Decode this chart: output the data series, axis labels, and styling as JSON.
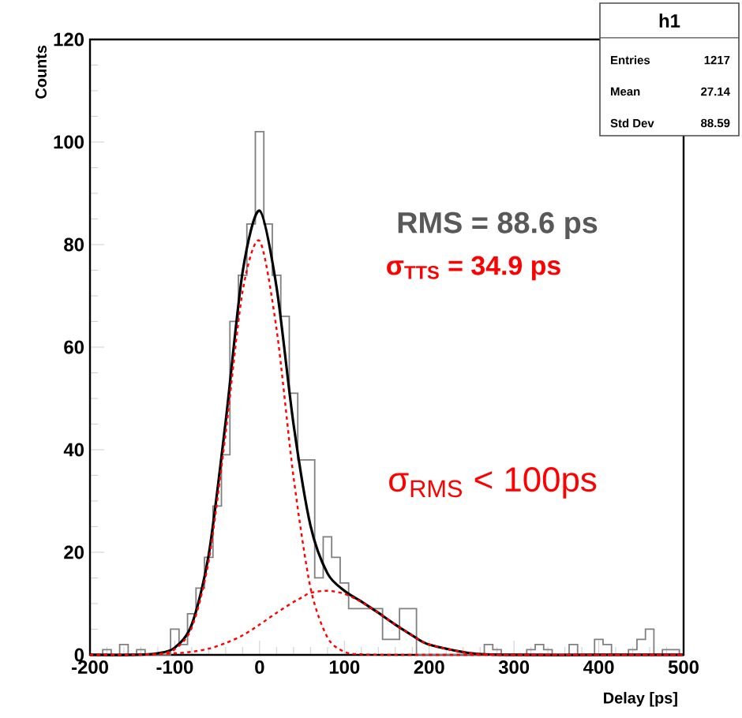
{
  "chart_data": {
    "type": "histogram",
    "xlabel": "Delay [ps]",
    "ylabel": "Counts",
    "bins": [
      -195,
      -185,
      -175,
      -165,
      -155,
      -145,
      -135,
      -125,
      -115,
      -105,
      -95,
      -85,
      -75,
      -65,
      -55,
      -45,
      -35,
      -25,
      -15,
      -5,
      5,
      15,
      25,
      35,
      45,
      55,
      65,
      75,
      85,
      95,
      105,
      115,
      125,
      135,
      145,
      155,
      165,
      175,
      185,
      195,
      205,
      215,
      225,
      235,
      245,
      255,
      265,
      275,
      285,
      295,
      305,
      315,
      325,
      335,
      345,
      355,
      365,
      375,
      385,
      395,
      405,
      415,
      425,
      435,
      445,
      455,
      465,
      475,
      485,
      495
    ],
    "values": [
      0,
      1,
      0,
      2,
      0,
      1,
      0,
      0,
      0,
      5,
      2,
      8,
      13,
      19,
      29,
      39,
      65,
      74,
      84,
      102,
      84,
      74,
      66,
      51,
      38,
      38,
      15,
      23,
      19,
      14,
      9,
      9,
      9,
      9,
      3,
      3,
      9,
      9,
      0,
      0,
      0,
      0,
      0,
      0,
      0,
      0,
      2,
      1,
      0,
      0,
      0,
      1,
      2,
      1,
      0,
      0,
      2,
      0,
      0,
      3,
      2,
      0,
      0,
      1,
      3,
      5,
      0,
      1,
      1
    ],
    "color": "#808080",
    "series": [
      {
        "type": "line",
        "color": "#000000",
        "line_style": "solid",
        "x": [
          -200,
          -150,
          -120,
          -100,
          -80,
          -60,
          -40,
          -20,
          0,
          20,
          40,
          60,
          80,
          100,
          120,
          140,
          160,
          180,
          200,
          250,
          300,
          400,
          500
        ],
        "values": [
          0,
          0,
          0.3,
          1.4,
          5.9,
          19.5,
          45.5,
          74.7,
          86.6,
          71.7,
          45,
          25.2,
          15.9,
          12.5,
          10.4,
          8.2,
          5.9,
          3.8,
          2,
          0.3,
          0,
          0,
          0
        ]
      },
      {
        "type": "line",
        "color": "#ff0000",
        "line_style": "dashed",
        "x": [
          -200,
          -150,
          -120,
          -100,
          -80,
          -60,
          -40,
          -20,
          0,
          20,
          40,
          60,
          80,
          100,
          120,
          150,
          200,
          500
        ],
        "values": [
          0,
          0,
          0.15,
          1.1,
          5.3,
          18.3,
          43.2,
          70.9,
          80.7,
          63.5,
          34.7,
          13.1,
          3.4,
          0.6,
          0.1,
          0,
          0,
          0
        ]
      },
      {
        "type": "line",
        "color": "#ff0000",
        "line_style": "dashed",
        "x": [
          -200,
          -150,
          -100,
          -80,
          -60,
          -40,
          -20,
          0,
          20,
          40,
          50,
          60,
          80,
          100,
          120,
          140,
          160,
          180,
          200,
          250,
          300,
          500
        ],
        "values": [
          0,
          0,
          0.3,
          0.6,
          1.2,
          2.3,
          3.8,
          5.9,
          8.2,
          10.3,
          11.2,
          12.1,
          12.5,
          11.9,
          10.3,
          8.2,
          5.9,
          3.8,
          2,
          0.3,
          0,
          0
        ]
      }
    ],
    "xlim": [
      -200,
      500
    ],
    "xticks": [
      -200,
      -100,
      0,
      100,
      200,
      300,
      400,
      500
    ],
    "ylim": [
      0,
      120
    ],
    "yticks": [
      0,
      20,
      40,
      60,
      80,
      100,
      120
    ],
    "annotations": [
      "h1",
      "Entries",
      "1217",
      "Mean",
      "27.14",
      "Std Dev",
      "88.59",
      "RMS = 88.6 ps",
      "σ$_{TTS}$ = 34.9 ps",
      "σ$_{RMS}$ < 100ps"
    ]
  }
}
